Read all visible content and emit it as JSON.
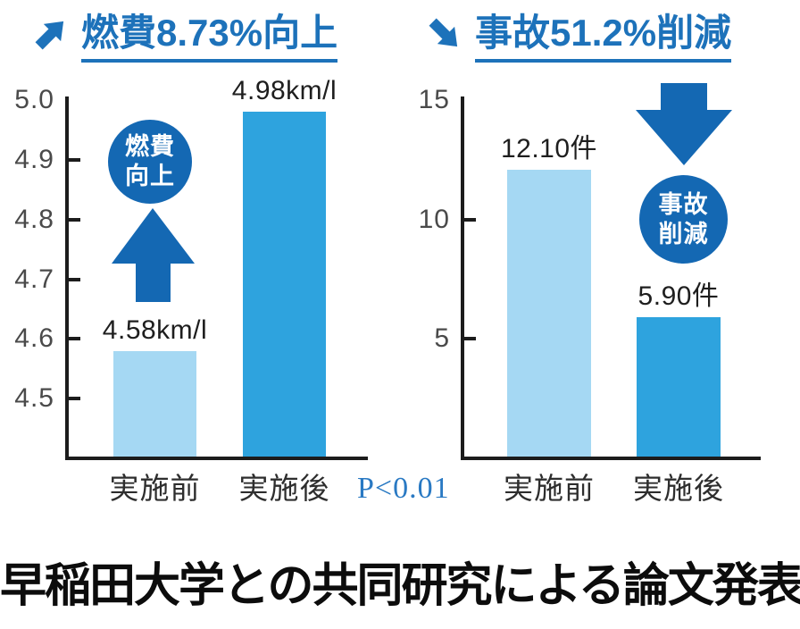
{
  "colors": {
    "accent_blue": "#1d72ba",
    "deep_blue": "#1468b3",
    "bar_before_blue": "#a5d8f3",
    "bar_after_blue": "#2ea3de",
    "p_value_blue": "#2979c3",
    "axis_black": "#1c1c1c",
    "caption_black": "#0c0c0c"
  },
  "chart_data": [
    {
      "type": "bar",
      "title": "燃費8.73%向上",
      "title_icon": "up-right-arrow-icon",
      "categories": [
        "実施前",
        "実施後"
      ],
      "values": [
        4.58,
        4.98
      ],
      "value_labels": [
        "4.58km/l",
        "4.98km/l"
      ],
      "unit": "km/l",
      "ylim": [
        4.4,
        5.0
      ],
      "yticks": [
        4.5,
        4.6,
        4.7,
        4.8,
        4.9,
        5.0
      ],
      "ytick_labels": [
        "4.5",
        "4.6",
        "4.7",
        "4.8",
        "4.9",
        "5.0"
      ],
      "bar_colors": [
        "#a5d8f3",
        "#2ea3de"
      ],
      "grid": false,
      "legend": "none",
      "annotation": {
        "line1": "燃費",
        "line2": "向上",
        "icon": "up-arrow-icon"
      }
    },
    {
      "type": "bar",
      "title": "事故51.2%削減",
      "title_icon": "down-right-arrow-icon",
      "categories": [
        "実施前",
        "実施後"
      ],
      "values": [
        12.1,
        5.9
      ],
      "value_labels": [
        "12.10件",
        "5.90件"
      ],
      "unit": "件",
      "ylim": [
        0,
        15
      ],
      "yticks": [
        5,
        10,
        15
      ],
      "ytick_labels": [
        "5",
        "10",
        "15"
      ],
      "bar_colors": [
        "#a5d8f3",
        "#2ea3de"
      ],
      "grid": false,
      "legend": "none",
      "annotation": {
        "line1": "事故",
        "line2": "削減",
        "icon": "down-arrow-icon"
      }
    }
  ],
  "footer": {
    "p_value": "P<0.01",
    "caption": "早稲田大学との共同研究による論文発表"
  }
}
